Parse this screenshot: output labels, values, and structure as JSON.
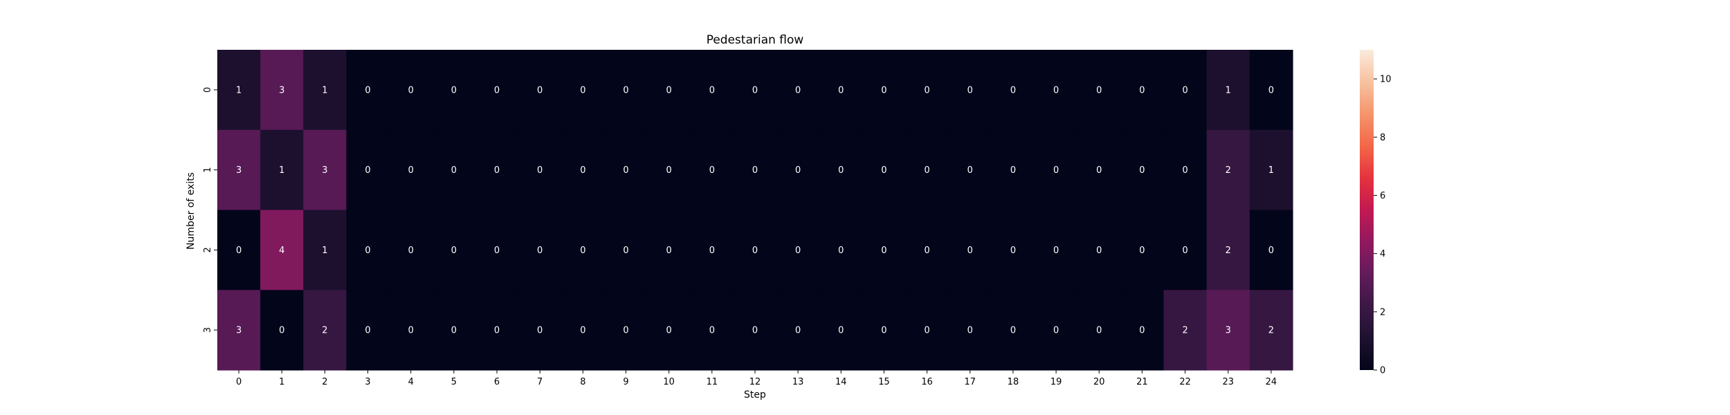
{
  "chart_data": {
    "type": "heatmap",
    "title": "Pedestarian flow",
    "xlabel": "Step",
    "ylabel": "Number of exits",
    "x": [
      "0",
      "1",
      "2",
      "3",
      "4",
      "5",
      "6",
      "7",
      "8",
      "9",
      "10",
      "11",
      "12",
      "13",
      "14",
      "15",
      "16",
      "17",
      "18",
      "19",
      "20",
      "21",
      "22",
      "23",
      "24"
    ],
    "y": [
      "0",
      "1",
      "2",
      "3"
    ],
    "values": [
      [
        1,
        3,
        1,
        0,
        0,
        0,
        0,
        0,
        0,
        0,
        0,
        0,
        0,
        0,
        0,
        0,
        0,
        0,
        0,
        0,
        0,
        0,
        0,
        1,
        0
      ],
      [
        3,
        1,
        3,
        0,
        0,
        0,
        0,
        0,
        0,
        0,
        0,
        0,
        0,
        0,
        0,
        0,
        0,
        0,
        0,
        0,
        0,
        0,
        0,
        2,
        1
      ],
      [
        0,
        4,
        1,
        0,
        0,
        0,
        0,
        0,
        0,
        0,
        0,
        0,
        0,
        0,
        0,
        0,
        0,
        0,
        0,
        0,
        0,
        0,
        0,
        2,
        0
      ],
      [
        3,
        0,
        2,
        0,
        0,
        0,
        0,
        0,
        0,
        0,
        0,
        0,
        0,
        0,
        0,
        0,
        0,
        0,
        0,
        0,
        0,
        0,
        2,
        3,
        2
      ]
    ],
    "colorbar": {
      "min": 0,
      "max": 11,
      "ticks": [
        "0",
        "2",
        "4",
        "6",
        "8",
        "10"
      ]
    },
    "colormap": "rocket",
    "grid": false
  }
}
